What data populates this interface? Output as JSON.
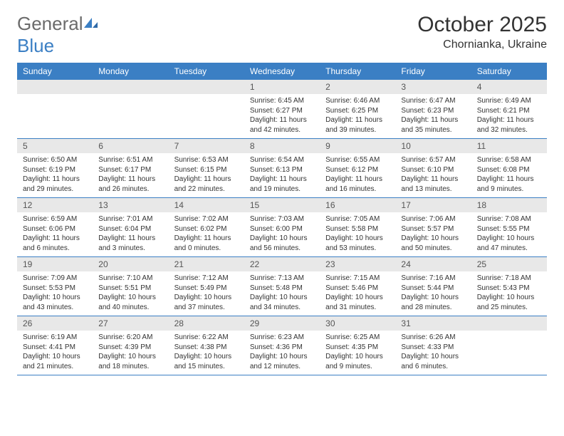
{
  "brand": {
    "name_gray": "General",
    "name_blue": "Blue",
    "icon_color": "#3b7fc4"
  },
  "title": "October 2025",
  "location": "Chornianka, Ukraine",
  "colors": {
    "header_bg": "#3b7fc4",
    "header_text": "#ffffff",
    "daynum_bg": "#e8e8e8",
    "border": "#3b7fc4",
    "text": "#333333"
  },
  "dow": [
    "Sunday",
    "Monday",
    "Tuesday",
    "Wednesday",
    "Thursday",
    "Friday",
    "Saturday"
  ],
  "weeks": [
    [
      {
        "n": "",
        "lines": []
      },
      {
        "n": "",
        "lines": []
      },
      {
        "n": "",
        "lines": []
      },
      {
        "n": "1",
        "lines": [
          "Sunrise: 6:45 AM",
          "Sunset: 6:27 PM",
          "Daylight: 11 hours",
          "and 42 minutes."
        ]
      },
      {
        "n": "2",
        "lines": [
          "Sunrise: 6:46 AM",
          "Sunset: 6:25 PM",
          "Daylight: 11 hours",
          "and 39 minutes."
        ]
      },
      {
        "n": "3",
        "lines": [
          "Sunrise: 6:47 AM",
          "Sunset: 6:23 PM",
          "Daylight: 11 hours",
          "and 35 minutes."
        ]
      },
      {
        "n": "4",
        "lines": [
          "Sunrise: 6:49 AM",
          "Sunset: 6:21 PM",
          "Daylight: 11 hours",
          "and 32 minutes."
        ]
      }
    ],
    [
      {
        "n": "5",
        "lines": [
          "Sunrise: 6:50 AM",
          "Sunset: 6:19 PM",
          "Daylight: 11 hours",
          "and 29 minutes."
        ]
      },
      {
        "n": "6",
        "lines": [
          "Sunrise: 6:51 AM",
          "Sunset: 6:17 PM",
          "Daylight: 11 hours",
          "and 26 minutes."
        ]
      },
      {
        "n": "7",
        "lines": [
          "Sunrise: 6:53 AM",
          "Sunset: 6:15 PM",
          "Daylight: 11 hours",
          "and 22 minutes."
        ]
      },
      {
        "n": "8",
        "lines": [
          "Sunrise: 6:54 AM",
          "Sunset: 6:13 PM",
          "Daylight: 11 hours",
          "and 19 minutes."
        ]
      },
      {
        "n": "9",
        "lines": [
          "Sunrise: 6:55 AM",
          "Sunset: 6:12 PM",
          "Daylight: 11 hours",
          "and 16 minutes."
        ]
      },
      {
        "n": "10",
        "lines": [
          "Sunrise: 6:57 AM",
          "Sunset: 6:10 PM",
          "Daylight: 11 hours",
          "and 13 minutes."
        ]
      },
      {
        "n": "11",
        "lines": [
          "Sunrise: 6:58 AM",
          "Sunset: 6:08 PM",
          "Daylight: 11 hours",
          "and 9 minutes."
        ]
      }
    ],
    [
      {
        "n": "12",
        "lines": [
          "Sunrise: 6:59 AM",
          "Sunset: 6:06 PM",
          "Daylight: 11 hours",
          "and 6 minutes."
        ]
      },
      {
        "n": "13",
        "lines": [
          "Sunrise: 7:01 AM",
          "Sunset: 6:04 PM",
          "Daylight: 11 hours",
          "and 3 minutes."
        ]
      },
      {
        "n": "14",
        "lines": [
          "Sunrise: 7:02 AM",
          "Sunset: 6:02 PM",
          "Daylight: 11 hours",
          "and 0 minutes."
        ]
      },
      {
        "n": "15",
        "lines": [
          "Sunrise: 7:03 AM",
          "Sunset: 6:00 PM",
          "Daylight: 10 hours",
          "and 56 minutes."
        ]
      },
      {
        "n": "16",
        "lines": [
          "Sunrise: 7:05 AM",
          "Sunset: 5:58 PM",
          "Daylight: 10 hours",
          "and 53 minutes."
        ]
      },
      {
        "n": "17",
        "lines": [
          "Sunrise: 7:06 AM",
          "Sunset: 5:57 PM",
          "Daylight: 10 hours",
          "and 50 minutes."
        ]
      },
      {
        "n": "18",
        "lines": [
          "Sunrise: 7:08 AM",
          "Sunset: 5:55 PM",
          "Daylight: 10 hours",
          "and 47 minutes."
        ]
      }
    ],
    [
      {
        "n": "19",
        "lines": [
          "Sunrise: 7:09 AM",
          "Sunset: 5:53 PM",
          "Daylight: 10 hours",
          "and 43 minutes."
        ]
      },
      {
        "n": "20",
        "lines": [
          "Sunrise: 7:10 AM",
          "Sunset: 5:51 PM",
          "Daylight: 10 hours",
          "and 40 minutes."
        ]
      },
      {
        "n": "21",
        "lines": [
          "Sunrise: 7:12 AM",
          "Sunset: 5:49 PM",
          "Daylight: 10 hours",
          "and 37 minutes."
        ]
      },
      {
        "n": "22",
        "lines": [
          "Sunrise: 7:13 AM",
          "Sunset: 5:48 PM",
          "Daylight: 10 hours",
          "and 34 minutes."
        ]
      },
      {
        "n": "23",
        "lines": [
          "Sunrise: 7:15 AM",
          "Sunset: 5:46 PM",
          "Daylight: 10 hours",
          "and 31 minutes."
        ]
      },
      {
        "n": "24",
        "lines": [
          "Sunrise: 7:16 AM",
          "Sunset: 5:44 PM",
          "Daylight: 10 hours",
          "and 28 minutes."
        ]
      },
      {
        "n": "25",
        "lines": [
          "Sunrise: 7:18 AM",
          "Sunset: 5:43 PM",
          "Daylight: 10 hours",
          "and 25 minutes."
        ]
      }
    ],
    [
      {
        "n": "26",
        "lines": [
          "Sunrise: 6:19 AM",
          "Sunset: 4:41 PM",
          "Daylight: 10 hours",
          "and 21 minutes."
        ]
      },
      {
        "n": "27",
        "lines": [
          "Sunrise: 6:20 AM",
          "Sunset: 4:39 PM",
          "Daylight: 10 hours",
          "and 18 minutes."
        ]
      },
      {
        "n": "28",
        "lines": [
          "Sunrise: 6:22 AM",
          "Sunset: 4:38 PM",
          "Daylight: 10 hours",
          "and 15 minutes."
        ]
      },
      {
        "n": "29",
        "lines": [
          "Sunrise: 6:23 AM",
          "Sunset: 4:36 PM",
          "Daylight: 10 hours",
          "and 12 minutes."
        ]
      },
      {
        "n": "30",
        "lines": [
          "Sunrise: 6:25 AM",
          "Sunset: 4:35 PM",
          "Daylight: 10 hours",
          "and 9 minutes."
        ]
      },
      {
        "n": "31",
        "lines": [
          "Sunrise: 6:26 AM",
          "Sunset: 4:33 PM",
          "Daylight: 10 hours",
          "and 6 minutes."
        ]
      },
      {
        "n": "",
        "lines": []
      }
    ]
  ]
}
